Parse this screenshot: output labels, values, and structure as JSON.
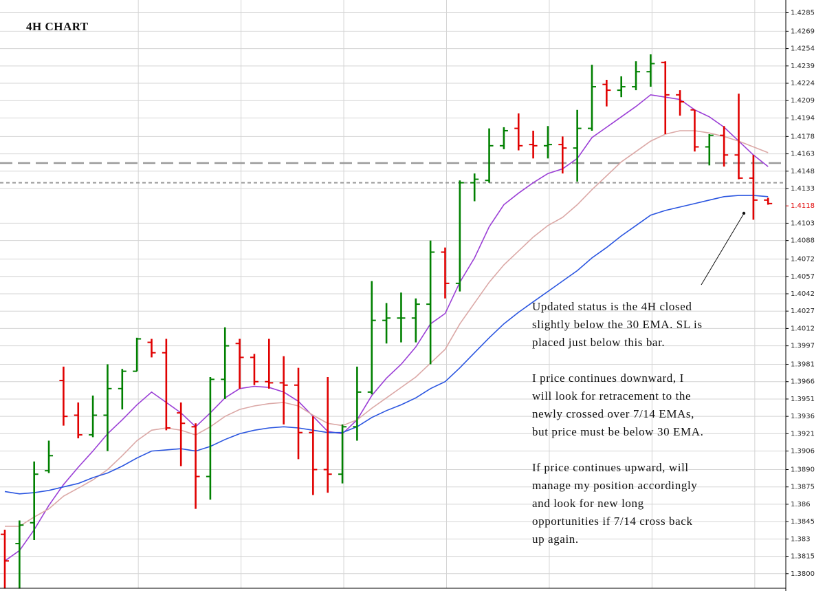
{
  "chart_data": {
    "type": "ohlc",
    "title": "4H CHART",
    "categories": [
      null,
      null,
      null,
      null,
      null,
      null,
      null,
      null,
      null,
      null,
      null,
      null,
      null,
      null,
      null,
      null,
      null,
      null,
      null,
      null,
      null,
      null,
      null,
      null,
      null,
      null,
      null,
      null,
      null,
      null,
      null,
      null,
      null,
      null,
      null,
      null,
      null,
      null,
      null,
      null,
      null,
      null,
      null,
      null,
      null,
      null,
      null,
      null,
      null,
      null,
      null,
      null,
      null
    ],
    "open": [
      1.3834,
      1.3826,
      1.3844,
      1.3889,
      1.3967,
      1.3937,
      1.392,
      1.3937,
      1.396,
      1.3975,
      1.4,
      1.3991,
      1.3939,
      1.3927,
      1.3884,
      1.3968,
      1.3999,
      1.3987,
      1.3966,
      1.3965,
      1.3963,
      1.3922,
      1.389,
      1.3886,
      1.3927,
      1.3957,
      1.4019,
      1.4021,
      1.4021,
      1.4033,
      1.4078,
      1.4051,
      1.4138,
      1.414,
      1.417,
      1.4185,
      1.4171,
      1.417,
      1.4171,
      1.4168,
      1.4185,
      1.4223,
      1.4218,
      1.4221,
      1.4234,
      1.4242,
      1.4214,
      1.4201,
      1.4169,
      1.4179,
      1.4162,
      1.4142,
      1.4123
    ],
    "high": [
      1.3838,
      1.3846,
      1.3897,
      1.3915,
      1.3979,
      1.3948,
      1.3954,
      1.3981,
      1.3977,
      1.4004,
      1.4003,
      1.4003,
      1.3948,
      1.393,
      1.397,
      1.4013,
      1.4003,
      1.399,
      1.4003,
      1.3988,
      1.3978,
      1.3936,
      1.397,
      1.3929,
      1.3979,
      1.4053,
      1.4034,
      1.4043,
      1.4038,
      1.4088,
      1.4082,
      1.414,
      1.4146,
      1.4185,
      1.4186,
      1.4198,
      1.4183,
      1.4187,
      1.4178,
      1.4201,
      1.424,
      1.4227,
      1.423,
      1.4243,
      1.4249,
      1.4243,
      1.4218,
      1.4201,
      1.418,
      1.4187,
      1.4215,
      1.4162,
      1.4125
    ],
    "low": [
      1.3787,
      1.3787,
      1.3829,
      1.3887,
      1.3928,
      1.3917,
      1.3918,
      1.3906,
      1.3942,
      1.3975,
      1.3987,
      1.3924,
      1.3893,
      1.3856,
      1.3864,
      1.3951,
      1.396,
      1.3963,
      1.396,
      1.3929,
      1.3899,
      1.3868,
      1.387,
      1.3878,
      1.3915,
      1.3955,
      1.3999,
      1.4,
      1.4,
      1.3981,
      1.4038,
      1.4044,
      1.4122,
      1.4138,
      1.4167,
      1.4166,
      1.4159,
      1.4159,
      1.4146,
      1.4139,
      1.4183,
      1.4204,
      1.4212,
      1.4218,
      1.4221,
      1.418,
      1.4196,
      1.4165,
      1.4153,
      1.4152,
      1.4141,
      1.4106,
      1.4119
    ],
    "close": [
      1.3811,
      1.3842,
      1.3886,
      1.3902,
      1.3936,
      1.392,
      1.3937,
      1.396,
      1.3975,
      1.4003,
      1.3991,
      1.3926,
      1.393,
      1.3884,
      1.3968,
      1.3997,
      1.3987,
      1.3966,
      1.3965,
      1.3963,
      1.3922,
      1.389,
      1.3886,
      1.3927,
      1.3957,
      1.4019,
      1.4021,
      1.4021,
      1.4033,
      1.4078,
      1.4051,
      1.4138,
      1.4141,
      1.417,
      1.4183,
      1.417,
      1.417,
      1.4171,
      1.4168,
      1.4185,
      1.4221,
      1.4218,
      1.4221,
      1.4234,
      1.4241,
      1.4214,
      1.4208,
      1.4169,
      1.4179,
      1.4162,
      1.4142,
      1.4123,
      1.412
    ],
    "up_color": "#008000",
    "down_color": "#e00000",
    "series": [
      {
        "color": "#9b3fd6",
        "values": [
          1.3811,
          1.382,
          1.3838,
          1.3859,
          1.3877,
          1.3892,
          1.3906,
          1.3921,
          1.3933,
          1.3946,
          1.3957,
          1.3948,
          1.3939,
          1.3927,
          1.3939,
          1.3952,
          1.396,
          1.3962,
          1.3961,
          1.3957,
          1.3949,
          1.3936,
          1.3923,
          1.3921,
          1.3933,
          1.3954,
          1.3969,
          1.3981,
          1.3996,
          1.4016,
          1.4025,
          1.4052,
          1.4073,
          1.41,
          1.4119,
          1.4129,
          1.4138,
          1.4146,
          1.415,
          1.4159,
          1.4177,
          1.4186,
          1.4195,
          1.4204,
          1.4214,
          1.4212,
          1.421,
          1.4201,
          1.4195,
          1.4186,
          1.4174,
          1.4162,
          1.4152
        ]
      },
      {
        "color": "#dba8a6",
        "values": [
          1.3841,
          1.3841,
          1.3849,
          1.3856,
          1.3867,
          1.3874,
          1.3881,
          1.389,
          1.3902,
          1.3915,
          1.3924,
          1.3926,
          1.3924,
          1.392,
          1.3927,
          1.3936,
          1.3942,
          1.3945,
          1.3947,
          1.3948,
          1.3945,
          1.3937,
          1.393,
          1.3928,
          1.3933,
          1.3943,
          1.3952,
          1.3961,
          1.397,
          1.3982,
          1.3994,
          1.4016,
          1.4034,
          1.4052,
          1.4067,
          1.4079,
          1.4091,
          1.4101,
          1.4108,
          1.4119,
          1.4132,
          1.4144,
          1.4156,
          1.4165,
          1.4174,
          1.418,
          1.4183,
          1.4183,
          1.4181,
          1.4178,
          1.4174,
          1.4169,
          1.4164
        ]
      },
      {
        "color": "#2a55e0",
        "values": [
          1.3871,
          1.3869,
          1.387,
          1.3872,
          1.3875,
          1.3878,
          1.3883,
          1.3887,
          1.3893,
          1.39,
          1.3906,
          1.3907,
          1.3908,
          1.3906,
          1.391,
          1.3916,
          1.3921,
          1.3924,
          1.3926,
          1.3927,
          1.3926,
          1.3924,
          1.3922,
          1.3922,
          1.3927,
          1.3935,
          1.3941,
          1.3946,
          1.3952,
          1.396,
          1.3966,
          1.3978,
          1.3991,
          1.4004,
          1.4016,
          1.4026,
          1.4035,
          1.4044,
          1.4053,
          1.4062,
          1.4073,
          1.4082,
          1.4092,
          1.4101,
          1.411,
          1.4114,
          1.4117,
          1.412,
          1.4123,
          1.4126,
          1.4127,
          1.4127,
          1.4126
        ]
      }
    ],
    "hlines": [
      1.4155,
      1.4138
    ],
    "current_price": 1.4118,
    "current_price_color": "#e00000",
    "ylim": [
      1.3785,
      1.4296
    ],
    "yticks": [
      1.4285,
      1.4269,
      1.4254,
      1.4239,
      1.4224,
      1.4209,
      1.4194,
      1.4178,
      1.4163,
      1.4148,
      1.4133,
      1.4103,
      1.4088,
      1.4072,
      1.4057,
      1.4042,
      1.4027,
      1.4012,
      1.3997,
      1.3981,
      1.3966,
      1.3951,
      1.3936,
      1.3921,
      1.3906,
      {
        "value": 1.389,
        "label": "1.3890"
      },
      1.3875,
      1.386,
      1.3845,
      1.383,
      1.3815,
      {
        "value": 1.38,
        "label": "1.3800"
      }
    ],
    "grid": true,
    "annotation": [
      [
        "Updated status is the 4H closed",
        "slightly below the 30 EMA. SL is",
        "placed just below this bar."
      ],
      [
        "I price continues downward, I",
        "will look for retracement to the",
        "newly crossed over 7/14 EMAs,",
        "but price must be below 30 EMA."
      ],
      [
        "If price continues upward, will",
        "manage my position accordingly",
        "and look for new long",
        "opportunities if 7/14 cross back",
        "up again."
      ]
    ]
  }
}
